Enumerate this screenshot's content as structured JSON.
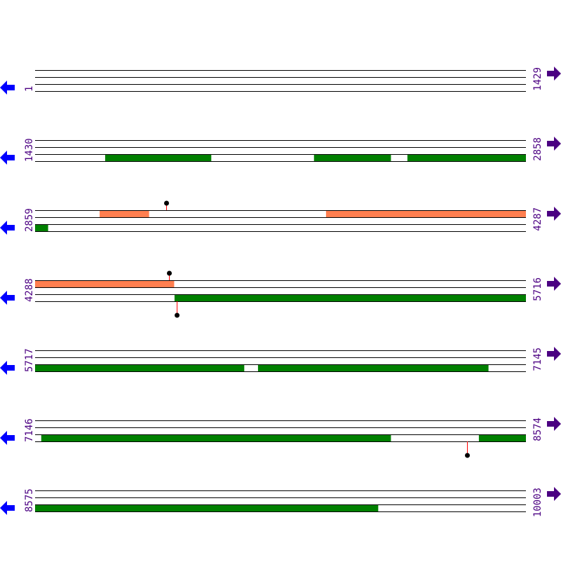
{
  "colors": {
    "line": "#000000",
    "cds": "#008000",
    "region": "#FF7F50",
    "stem": "#FF0000",
    "label": "#4B0082",
    "left_arrow": "#0000FF",
    "right_arrow": "#4B0082"
  },
  "bp_per_row": 1429,
  "rows": [
    {
      "start": "1",
      "end": "1429",
      "start_bp": 1,
      "upper": [],
      "lower": [],
      "markers": []
    },
    {
      "start": "1430",
      "end": "2858",
      "start_bp": 1430,
      "upper": [],
      "lower": [
        [
          1634,
          1942
        ],
        [
          2242,
          2465
        ],
        [
          2514,
          2858
        ]
      ],
      "markers": []
    },
    {
      "start": "2859",
      "end": "4287",
      "start_bp": 2859,
      "upper": [
        [
          3047,
          3190
        ],
        [
          3706,
          4287
        ]
      ],
      "lower": [
        [
          2859,
          2896
        ]
      ],
      "markers": [
        {
          "pos": 3241,
          "dir": "up"
        }
      ]
    },
    {
      "start": "4288",
      "end": "5716",
      "start_bp": 4288,
      "upper": [
        [
          4288,
          4692
        ]
      ],
      "lower": [
        [
          4694,
          5716
        ]
      ],
      "markers": [
        {
          "pos": 4678,
          "dir": "up"
        },
        {
          "pos": 4700,
          "dir": "down"
        }
      ]
    },
    {
      "start": "5717",
      "end": "7145",
      "start_bp": 5717,
      "upper": [],
      "lower": [
        [
          5717,
          6325
        ],
        [
          6366,
          7036
        ]
      ],
      "markers": []
    },
    {
      "start": "7146",
      "end": "8574",
      "start_bp": 7146,
      "upper": [],
      "lower": [
        [
          7164,
          8181
        ],
        [
          8438,
          8574
        ]
      ],
      "markers": [
        {
          "pos": 8404,
          "dir": "down"
        }
      ]
    },
    {
      "start": "8575",
      "end": "10003",
      "start_bp": 8575,
      "upper": [],
      "lower": [
        [
          8575,
          9573
        ]
      ],
      "markers": []
    }
  ],
  "icons": {
    "left": "arrow-left-icon",
    "right": "arrow-right-icon"
  }
}
